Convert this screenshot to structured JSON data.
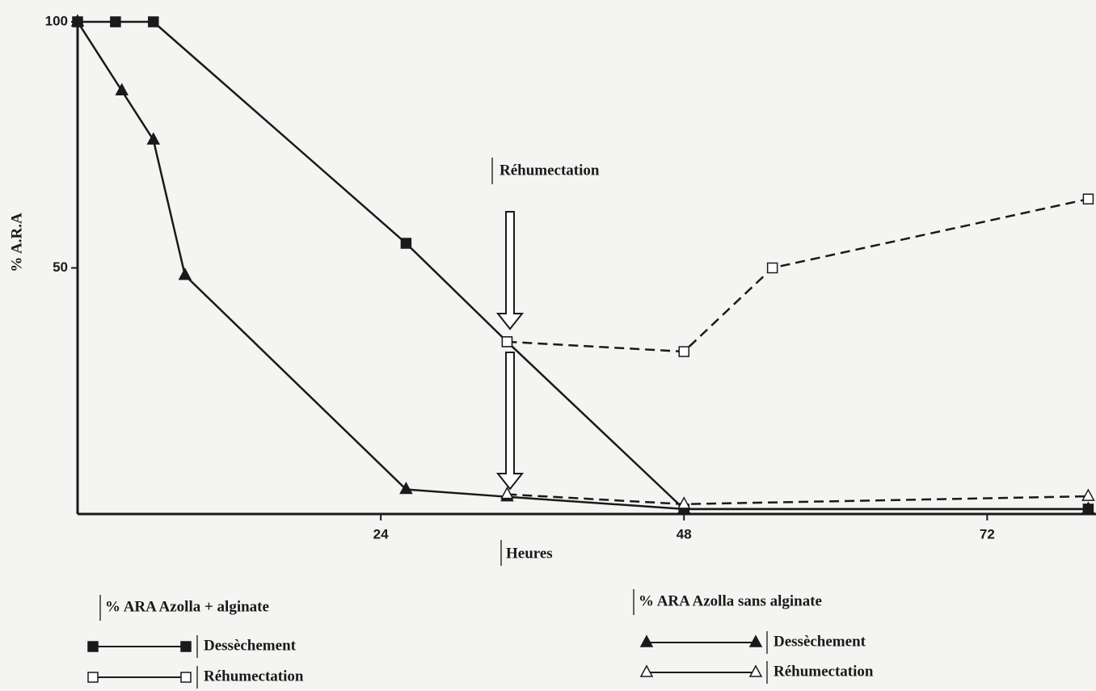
{
  "chart_data": {
    "type": "line",
    "x_label": "Heures",
    "y_label": "% A.R.A",
    "annotation": "Réhumectation",
    "xlim": [
      0,
      81
    ],
    "xticks": [
      24,
      48,
      72
    ],
    "ylim": [
      0,
      100
    ],
    "yticks": [
      50,
      100
    ],
    "legend_groups": [
      "% ARA Azolla + alginate",
      "% ARA Azolla sans alginate"
    ],
    "series": [
      {
        "name": "Dessèchement",
        "group": 0,
        "marker": "square",
        "filled": true,
        "dashed": false,
        "color": "#1a1a1a",
        "x": [
          0,
          3,
          6,
          26,
          34,
          48,
          80
        ],
        "values": [
          100,
          100,
          100,
          55,
          35,
          1,
          1
        ]
      },
      {
        "name": "Réhumectation",
        "group": 0,
        "marker": "square",
        "filled": false,
        "dashed": true,
        "color": "#1a1a1a",
        "x": [
          34,
          48,
          55,
          80
        ],
        "values": [
          35,
          33,
          50,
          64
        ]
      },
      {
        "name": "Dessèchement",
        "group": 1,
        "marker": "triangle",
        "filled": true,
        "dashed": false,
        "color": "#1a1a1a",
        "x": [
          0,
          3.5,
          6,
          8.5,
          26,
          34,
          48,
          80
        ],
        "values": [
          100,
          86,
          76,
          48.5,
          5,
          3.5,
          1,
          1
        ]
      },
      {
        "name": "Réhumectation",
        "group": 1,
        "marker": "triangle",
        "filled": false,
        "dashed": true,
        "color": "#1a1a1a",
        "x": [
          34,
          48,
          80
        ],
        "values": [
          4,
          2,
          3.6
        ]
      }
    ]
  }
}
